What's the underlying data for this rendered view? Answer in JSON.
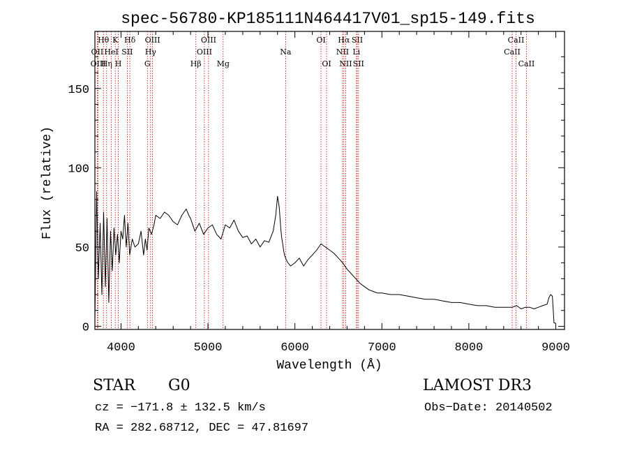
{
  "chart_data": {
    "type": "line",
    "title": "spec-56780-KP185111N464417V01_sp15-149.fits",
    "xlabel": "Wavelength (Å)",
    "ylabel": "Flux (relative)",
    "xlim": [
      3700,
      9100
    ],
    "ylim": [
      -2,
      186
    ],
    "xticks": [
      4000,
      5000,
      6000,
      7000,
      8000,
      9000
    ],
    "yticks": [
      0,
      50,
      100,
      150
    ],
    "series": [
      {
        "name": "flux",
        "x": [
          3700,
          3720,
          3740,
          3760,
          3780,
          3800,
          3820,
          3840,
          3860,
          3880,
          3900,
          3920,
          3940,
          3960,
          3980,
          4000,
          4020,
          4040,
          4060,
          4080,
          4100,
          4130,
          4160,
          4200,
          4230,
          4260,
          4280,
          4300,
          4320,
          4350,
          4380,
          4400,
          4450,
          4500,
          4550,
          4600,
          4650,
          4700,
          4750,
          4780,
          4800,
          4850,
          4900,
          4950,
          5000,
          5050,
          5100,
          5150,
          5200,
          5250,
          5300,
          5350,
          5400,
          5450,
          5500,
          5550,
          5600,
          5650,
          5700,
          5750,
          5780,
          5800,
          5820,
          5840,
          5850,
          5860,
          5870,
          5880,
          5900,
          5920,
          5950,
          6000,
          6050,
          6080,
          6100,
          6150,
          6200,
          6250,
          6300,
          6350,
          6400,
          6450,
          6500,
          6550,
          6600,
          6650,
          6700,
          6750,
          6800,
          6850,
          6900,
          6950,
          7000,
          7100,
          7200,
          7300,
          7400,
          7500,
          7600,
          7700,
          7800,
          7900,
          8000,
          8100,
          8200,
          8300,
          8400,
          8500,
          8550,
          8600,
          8650,
          8700,
          8750,
          8800,
          8850,
          8900,
          8920,
          8940,
          8960,
          8980,
          9000
        ],
        "y": [
          5,
          85,
          30,
          65,
          20,
          72,
          25,
          68,
          15,
          60,
          35,
          62,
          45,
          58,
          40,
          60,
          55,
          70,
          50,
          65,
          45,
          55,
          50,
          52,
          60,
          45,
          55,
          48,
          62,
          58,
          64,
          70,
          68,
          72,
          70,
          66,
          64,
          70,
          74,
          70,
          68,
          60,
          65,
          58,
          62,
          64,
          58,
          55,
          64,
          62,
          67,
          60,
          56,
          57,
          52,
          55,
          50,
          54,
          53,
          60,
          70,
          82,
          75,
          60,
          55,
          52,
          48,
          45,
          42,
          40,
          38,
          40,
          43,
          40,
          38,
          42,
          45,
          48,
          52,
          50,
          48,
          46,
          43,
          40,
          36,
          33,
          30,
          27,
          25,
          23,
          22,
          21,
          21,
          20,
          20,
          19,
          18,
          17,
          17,
          16,
          15,
          15,
          14,
          13,
          13,
          12,
          12,
          12,
          13,
          11,
          12,
          12,
          11,
          12,
          13,
          14,
          18,
          20,
          19,
          2,
          2
        ]
      }
    ],
    "lines": [
      {
        "name": "Hθ",
        "x": 3798,
        "row": 1
      },
      {
        "name": "OII",
        "x": 3727,
        "row": 2
      },
      {
        "name": "OIII",
        "x": 3737,
        "row": 3
      },
      {
        "name": "Hη",
        "x": 3835,
        "row": 3
      },
      {
        "name": "HeI",
        "x": 3889,
        "row": 2
      },
      {
        "name": "K",
        "x": 3934,
        "row": 1
      },
      {
        "name": "H",
        "x": 3969,
        "row": 3
      },
      {
        "name": "SII",
        "x": 4072,
        "row": 2
      },
      {
        "name": "Hδ",
        "x": 4102,
        "row": 1
      },
      {
        "name": "G",
        "x": 4304,
        "row": 3
      },
      {
        "name": "Hγ",
        "x": 4340,
        "row": 2
      },
      {
        "name": "OIII",
        "x": 4363,
        "row": 1
      },
      {
        "name": "Hβ",
        "x": 4861,
        "row": 3
      },
      {
        "name": "OIII",
        "x": 4959,
        "row": 2
      },
      {
        "name": "OIII",
        "x": 5007,
        "row": 1
      },
      {
        "name": "Mg",
        "x": 5175,
        "row": 3
      },
      {
        "name": "Na",
        "x": 5894,
        "row": 2
      },
      {
        "name": "OI",
        "x": 6300,
        "row": 1
      },
      {
        "name": "OI",
        "x": 6364,
        "row": 3
      },
      {
        "name": "NII",
        "x": 6548,
        "row": 2
      },
      {
        "name": "Hα",
        "x": 6563,
        "row": 1
      },
      {
        "name": "NII",
        "x": 6584,
        "row": 3
      },
      {
        "name": "SII",
        "x": 6717,
        "row": 1
      },
      {
        "name": "Li",
        "x": 6707,
        "row": 2
      },
      {
        "name": "SII",
        "x": 6731,
        "row": 3
      },
      {
        "name": "CaII",
        "x": 8498,
        "row": 2
      },
      {
        "name": "CaII",
        "x": 8542,
        "row": 1
      },
      {
        "name": "CaII",
        "x": 8662,
        "row": 3
      }
    ]
  },
  "info": {
    "class": "STAR",
    "subclass": "G0",
    "survey": "LAMOST DR3",
    "cz": "cz = −171.8 ± 132.5 km/s",
    "obs_date": "Obs−Date: 20140502",
    "coords": "RA = 282.68712, DEC =  47.81697"
  },
  "colors": {
    "line_marker": "#cc0000",
    "spectrum": "#000000"
  }
}
